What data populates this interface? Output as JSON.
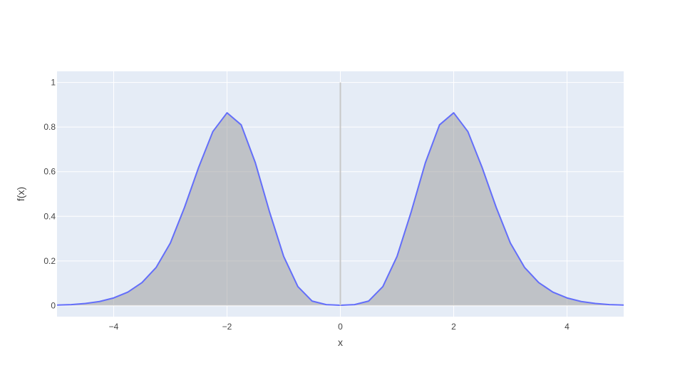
{
  "chart_data": {
    "type": "area",
    "title": "",
    "xlabel": "x",
    "ylabel": "f(x)",
    "xlim": [
      -5,
      5
    ],
    "ylim": [
      -0.05,
      1.05
    ],
    "grid": true,
    "legend": "none",
    "x_ticks": [
      -4,
      -2,
      0,
      2,
      4
    ],
    "x_tick_labels": [
      "−4",
      "−2",
      "0",
      "2",
      "4"
    ],
    "y_ticks": [
      0,
      0.2,
      0.4,
      0.6,
      0.8,
      1
    ],
    "y_tick_labels": [
      "0",
      "0.2",
      "0.4",
      "0.6",
      "0.8",
      "1"
    ],
    "vertical_line": {
      "x": 0,
      "y_range": [
        0,
        1
      ],
      "color": "#c8c8c8"
    },
    "colors": {
      "plot_bg": "#e5ecf6",
      "grid": "#ffffff",
      "line": "#636efa",
      "fill": "rgba(160,160,160,0.55)"
    },
    "series": [
      {
        "x": [
          -5,
          -4.75,
          -4.5,
          -4.25,
          -4,
          -3.75,
          -3.5,
          -3.25,
          -3,
          -2.75,
          -2.5,
          -2.25,
          -2,
          -1.75,
          -1.5,
          -1.25,
          -1,
          -0.75,
          -0.5,
          -0.25,
          0,
          0.25,
          0.5,
          0.75,
          1,
          1.25,
          1.5,
          1.75,
          2,
          2.25,
          2.5,
          2.75,
          3,
          3.25,
          3.5,
          3.75,
          4,
          4.25,
          4.5,
          4.75,
          5
        ],
        "values": [
          0.002,
          0.004,
          0.009,
          0.018,
          0.034,
          0.06,
          0.103,
          0.171,
          0.28,
          0.44,
          0.62,
          0.78,
          0.864,
          0.81,
          0.64,
          0.42,
          0.22,
          0.085,
          0.02,
          0.004,
          0.001,
          0.004,
          0.02,
          0.085,
          0.22,
          0.42,
          0.64,
          0.81,
          0.864,
          0.78,
          0.62,
          0.44,
          0.28,
          0.171,
          0.103,
          0.06,
          0.034,
          0.018,
          0.009,
          0.004,
          0.002
        ]
      }
    ]
  }
}
